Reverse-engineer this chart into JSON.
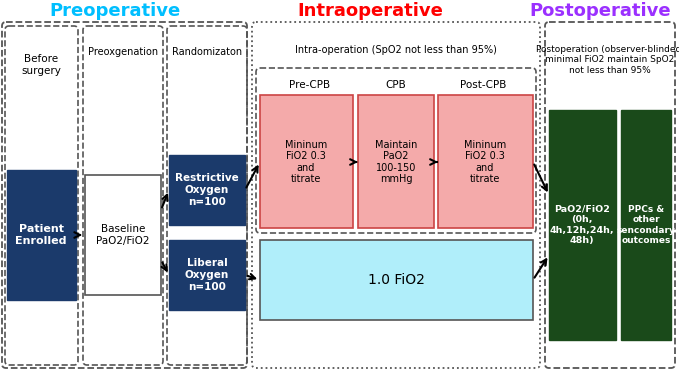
{
  "title_preop": "Preoperative",
  "title_intraop": "Intraoperative",
  "title_postop": "Postoperative",
  "color_preop_title": "#00BFFF",
  "color_intraop_title": "#FF0000",
  "color_postop_title": "#9B30FF",
  "color_dark_blue": "#1B3A6B",
  "color_pink": "#F4AAAA",
  "color_light_blue": "#B0EEFA",
  "color_dark_green": "#1A4A1A",
  "color_white": "#FFFFFF",
  "color_black": "#000000",
  "bg_color": "#FFFFFF",
  "dashed_color": "#555555",
  "dotted_color": "#555555"
}
